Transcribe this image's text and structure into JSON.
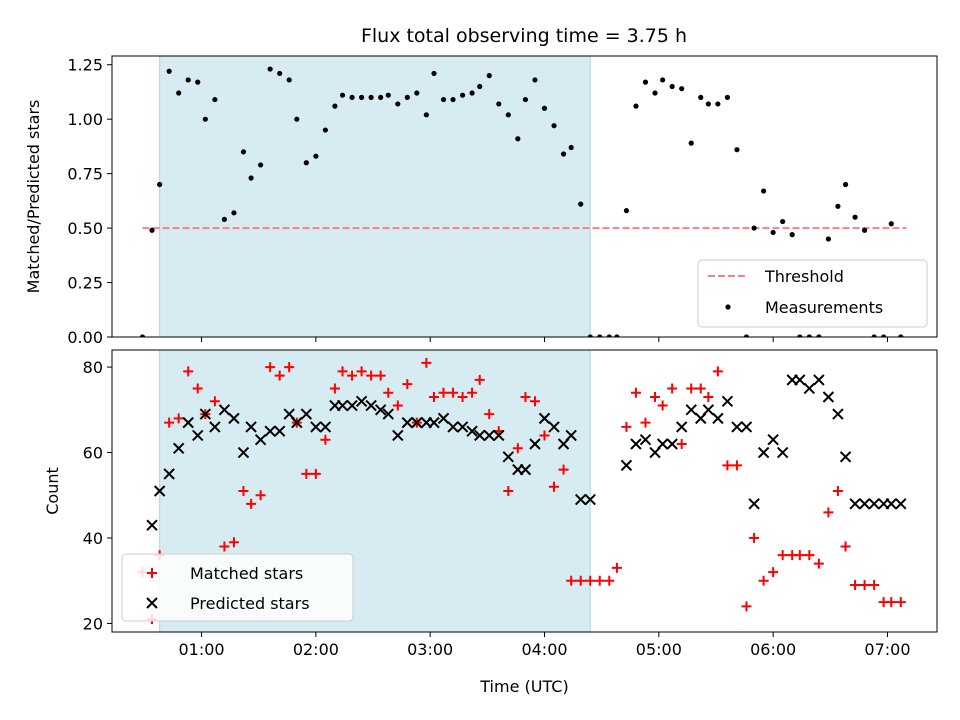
{
  "figure": {
    "title": "Flux total observing time = 3.75 h"
  },
  "colors": {
    "shade": "#add8e6",
    "threshold": "#ff7f7f",
    "measurements": "#000000",
    "matched": "#ff0000",
    "predicted": "#000000"
  },
  "chart_data": [
    {
      "type": "scatter",
      "panel": "top",
      "title": "Flux total observing time = 3.75 h",
      "xlabel": "",
      "ylabel": "Matched/Predicted stars",
      "xlim": [
        "00:13",
        "07:26"
      ],
      "ylim": [
        0,
        1.29
      ],
      "yticks": [
        0.0,
        0.25,
        0.5,
        0.75,
        1.0,
        1.25
      ],
      "yticklabels": [
        "0.00",
        "0.25",
        "0.50",
        "0.75",
        "1.00",
        "1.25"
      ],
      "shaded_interval": [
        "00:38",
        "04:24"
      ],
      "threshold": {
        "label": "Threshold",
        "value": 0.5,
        "x_range": [
          "00:29",
          "07:10"
        ]
      },
      "legend": {
        "placement": "lower-right",
        "entries": [
          "Threshold",
          "Measurements"
        ]
      },
      "series": [
        {
          "name": "Measurements",
          "marker": "dot",
          "x": [
            "00:29",
            "00:34",
            "00:38",
            "00:43",
            "00:48",
            "00:53",
            "00:58",
            "01:02",
            "01:07",
            "01:12",
            "01:17",
            "01:22",
            "01:26",
            "01:31",
            "01:36",
            "01:41",
            "01:46",
            "01:50",
            "01:55",
            "02:00",
            "02:05",
            "02:10",
            "02:14",
            "02:19",
            "02:24",
            "02:29",
            "02:34",
            "02:38",
            "02:43",
            "02:48",
            "02:53",
            "02:58",
            "03:02",
            "03:07",
            "03:12",
            "03:17",
            "03:22",
            "03:26",
            "03:31",
            "03:36",
            "03:41",
            "03:46",
            "03:50",
            "03:55",
            "04:00",
            "04:05",
            "04:10",
            "04:14",
            "04:19",
            "04:24",
            "04:29",
            "04:34",
            "04:38",
            "04:43",
            "04:48",
            "04:53",
            "04:58",
            "05:02",
            "05:07",
            "05:12",
            "05:17",
            "05:22",
            "05:26",
            "05:31",
            "05:36",
            "05:41",
            "05:46",
            "05:50",
            "05:55",
            "06:00",
            "06:05",
            "06:10",
            "06:14",
            "06:19",
            "06:24",
            "06:29",
            "06:34",
            "06:38",
            "06:43",
            "06:48",
            "06:53",
            "06:58",
            "07:02",
            "07:07"
          ],
          "y": [
            0.0,
            0.49,
            0.7,
            1.22,
            1.12,
            1.18,
            1.17,
            1.0,
            1.09,
            0.54,
            0.57,
            0.85,
            0.73,
            0.79,
            1.23,
            1.21,
            1.18,
            1.0,
            0.8,
            0.83,
            0.95,
            1.06,
            1.11,
            1.1,
            1.1,
            1.1,
            1.1,
            1.11,
            1.07,
            1.1,
            1.12,
            1.02,
            1.21,
            1.09,
            1.09,
            1.11,
            1.12,
            1.15,
            1.2,
            1.07,
            1.02,
            0.91,
            1.09,
            1.18,
            1.05,
            0.97,
            0.84,
            0.87,
            0.61,
            0.0,
            0.0,
            0.0,
            0.0,
            0.58,
            1.06,
            1.17,
            1.12,
            1.18,
            1.15,
            1.14,
            0.89,
            1.1,
            1.07,
            1.07,
            1.1,
            0.86,
            0.0,
            0.5,
            0.67,
            0.48,
            0.53,
            0.47,
            0.0,
            0.0,
            0.0,
            0.45,
            0.6,
            0.7,
            0.55,
            0.49,
            0.0,
            0.0,
            0.52,
            0.0
          ]
        }
      ]
    },
    {
      "type": "scatter",
      "panel": "bottom",
      "xlabel": "Time (UTC)",
      "ylabel": "Count",
      "xlim": [
        "00:13",
        "07:26"
      ],
      "ylim": [
        18,
        84
      ],
      "xticks": [
        "01:00",
        "02:00",
        "03:00",
        "04:00",
        "05:00",
        "06:00",
        "07:00"
      ],
      "yticks": [
        20,
        40,
        60,
        80
      ],
      "shaded_interval": [
        "00:38",
        "04:24"
      ],
      "legend": {
        "placement": "lower-left",
        "entries": [
          "Matched stars",
          "Predicted stars"
        ]
      },
      "series": [
        {
          "name": "Matched stars",
          "marker": "plus",
          "x": [
            "00:29",
            "00:34",
            "00:38",
            "00:43",
            "00:48",
            "00:53",
            "00:58",
            "01:02",
            "01:07",
            "01:12",
            "01:17",
            "01:22",
            "01:26",
            "01:31",
            "01:36",
            "01:41",
            "01:46",
            "01:50",
            "01:55",
            "02:00",
            "02:05",
            "02:10",
            "02:14",
            "02:19",
            "02:24",
            "02:29",
            "02:34",
            "02:38",
            "02:43",
            "02:48",
            "02:53",
            "02:58",
            "03:02",
            "03:07",
            "03:12",
            "03:17",
            "03:22",
            "03:26",
            "03:31",
            "03:36",
            "03:41",
            "03:46",
            "03:50",
            "03:55",
            "04:00",
            "04:05",
            "04:10",
            "04:14",
            "04:19",
            "04:24",
            "04:29",
            "04:34",
            "04:38",
            "04:43",
            "04:48",
            "04:53",
            "04:58",
            "05:02",
            "05:07",
            "05:12",
            "05:17",
            "05:22",
            "05:26",
            "05:31",
            "05:36",
            "05:41",
            "05:46",
            "05:50",
            "05:55",
            "06:00",
            "06:05",
            "06:10",
            "06:14",
            "06:19",
            "06:24",
            "06:29",
            "06:34",
            "06:38",
            "06:43",
            "06:48",
            "06:53",
            "06:58",
            "07:02",
            "07:07"
          ],
          "y": [
            32,
            21,
            36,
            67,
            68,
            79,
            75,
            69,
            72,
            38,
            39,
            51,
            48,
            50,
            80,
            78,
            80,
            67,
            55,
            55,
            63,
            75,
            79,
            78,
            79,
            78,
            78,
            74,
            71,
            76,
            67,
            81,
            73,
            74,
            74,
            73,
            74,
            77,
            69,
            65,
            51,
            61,
            73,
            72,
            64,
            52,
            56,
            30,
            30,
            30,
            30,
            30,
            33,
            66,
            74,
            67,
            73,
            71,
            75,
            62,
            75,
            75,
            73,
            79,
            57,
            57,
            24,
            40,
            30,
            32,
            36,
            36,
            36,
            36,
            34,
            46,
            51,
            38,
            29,
            29,
            29,
            25,
            25,
            25
          ]
        },
        {
          "name": "Predicted stars",
          "marker": "x",
          "x": [
            "00:34",
            "00:38",
            "00:43",
            "00:48",
            "00:53",
            "00:58",
            "01:02",
            "01:07",
            "01:12",
            "01:17",
            "01:22",
            "01:26",
            "01:31",
            "01:36",
            "01:41",
            "01:46",
            "01:50",
            "01:55",
            "02:00",
            "02:05",
            "02:10",
            "02:14",
            "02:19",
            "02:24",
            "02:29",
            "02:34",
            "02:38",
            "02:43",
            "02:48",
            "02:53",
            "02:58",
            "03:02",
            "03:07",
            "03:12",
            "03:17",
            "03:22",
            "03:26",
            "03:31",
            "03:36",
            "03:41",
            "03:46",
            "03:50",
            "03:55",
            "04:00",
            "04:05",
            "04:10",
            "04:14",
            "04:19",
            "04:24",
            "04:43",
            "04:48",
            "04:53",
            "04:58",
            "05:02",
            "05:07",
            "05:12",
            "05:17",
            "05:22",
            "05:26",
            "05:31",
            "05:36",
            "05:41",
            "05:46",
            "05:50",
            "05:55",
            "06:00",
            "06:05",
            "06:10",
            "06:14",
            "06:19",
            "06:24",
            "06:29",
            "06:34",
            "06:38",
            "06:43",
            "06:48",
            "06:53",
            "06:58",
            "07:02",
            "07:07"
          ],
          "y": [
            43,
            51,
            55,
            61,
            67,
            64,
            69,
            66,
            70,
            68,
            60,
            66,
            63,
            65,
            65,
            69,
            67,
            69,
            66,
            66,
            71,
            71,
            71,
            72,
            71,
            70,
            69,
            64,
            67,
            67,
            67,
            67,
            68,
            66,
            66,
            65,
            64,
            64,
            64,
            59,
            56,
            56,
            62,
            68,
            66,
            62,
            64,
            49,
            49,
            57,
            62,
            63,
            60,
            62,
            62,
            66,
            70,
            68,
            70,
            68,
            72,
            66,
            66,
            48,
            60,
            63,
            60,
            77,
            77,
            75,
            77,
            73,
            69,
            59,
            48,
            48,
            48,
            48,
            48,
            48
          ]
        }
      ]
    }
  ]
}
